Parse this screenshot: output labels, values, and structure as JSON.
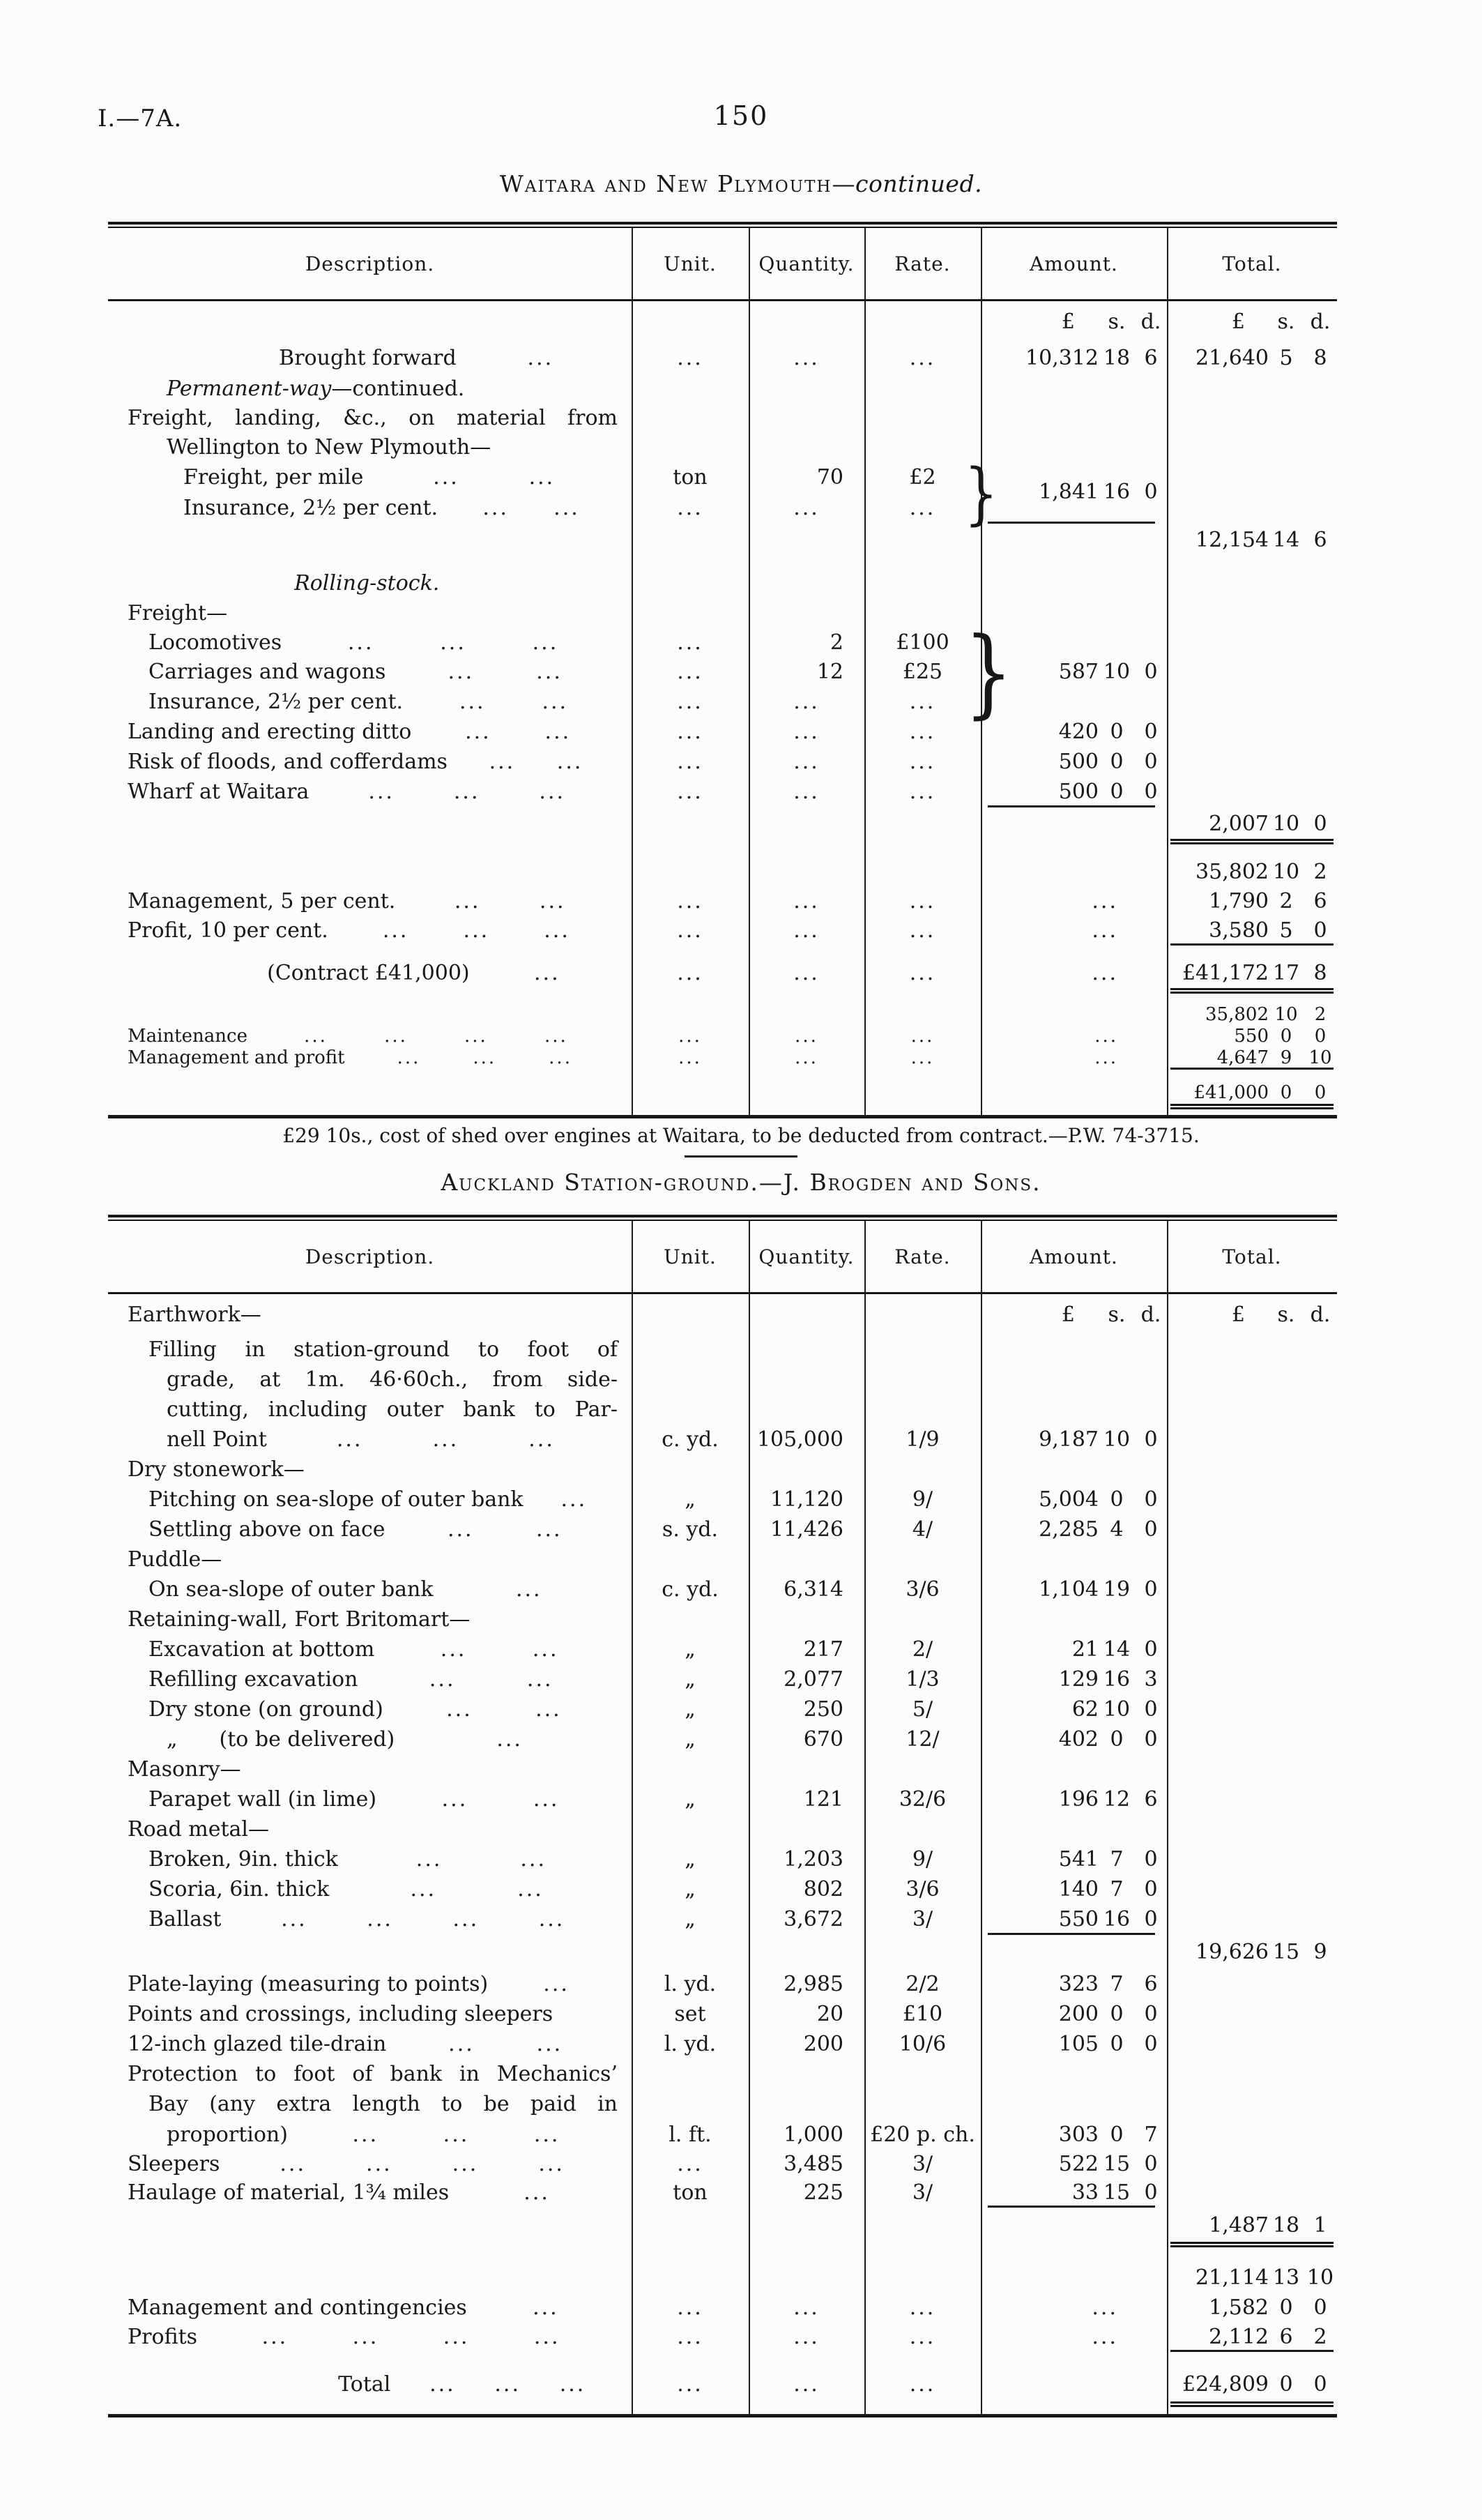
{
  "colors": {
    "ink": "#181715",
    "paper": "#fcfcfa"
  },
  "page": {
    "doc_ref": "I.—7A.",
    "page_number": "150"
  },
  "currency": {
    "pounds": "£",
    "shillings": "s.",
    "pence": "d."
  },
  "footnote": "£29 10s., cost of shed over engines at Waitara, to be deducted from contract.—P.W. 74-3715.",
  "section1": {
    "title": "Waitara and New Plymouth",
    "title_suffix": "—continued.",
    "columns": [
      "Description.",
      "Unit.",
      "Quantity.",
      "Rate.",
      "Amount.",
      "Total."
    ],
    "rows": [
      {
        "cur": true,
        "h": 58
      },
      {
        "desc": "Brought forward",
        "style": "c",
        "dots": 1,
        "unit": "...",
        "qty": "...",
        "rate": "...",
        "amt": [
          "10,312",
          "18",
          "6"
        ],
        "tot": [
          "21,640",
          "5",
          "8"
        ],
        "h": 46
      },
      {
        "italic": "Permanent-way",
        "desc": "—continued.",
        "style": "i2",
        "h": 42
      },
      {
        "desc": "Freight, landing, &c., on material from",
        "style": "j",
        "h": 42
      },
      {
        "desc": "Wellington to New Plymouth—",
        "style": "i2",
        "h": 42
      },
      {
        "desc": "Freight, per mile",
        "style": "i3",
        "dots": 2,
        "unit": "ton",
        "qty": "70",
        "rate": "£2",
        "brace": 2,
        "h": 44
      },
      {
        "desc": "Insurance, 2½ per cent.",
        "style": "i3",
        "dots": 2,
        "unit": "...",
        "qty": "...",
        "rate": "...",
        "amtMid": [
          "1,841",
          "16",
          "0"
        ],
        "h": 44
      },
      {
        "tot": [
          "12,154",
          "14",
          "6"
        ],
        "amtRule": true,
        "h": 48
      },
      {
        "h": 16
      },
      {
        "italic": "Rolling-stock.",
        "style": "c",
        "h": 44
      },
      {
        "desc": "Freight—",
        "style": "f",
        "h": 42
      },
      {
        "desc": "Locomotives",
        "style": "i1",
        "dots": 3,
        "unit": "...",
        "qty": "2",
        "rate": "£100",
        "brace": 3,
        "h": 42
      },
      {
        "desc": "Carriages and wagons",
        "style": "i1",
        "dots": 2,
        "unit": "...",
        "qty": "12",
        "rate": "£25",
        "amt": [
          "587",
          "10",
          "0"
        ],
        "h": 42
      },
      {
        "desc": "Insurance, 2½ per cent.",
        "style": "i1",
        "dots": 2,
        "unit": "...",
        "qty": "...",
        "rate": "...",
        "h": 44
      },
      {
        "desc": "Landing and erecting ditto",
        "style": "f",
        "dots": 2,
        "unit": "...",
        "qty": "...",
        "rate": "...",
        "amt": [
          "420",
          "0",
          "0"
        ],
        "h": 43
      },
      {
        "desc": "Risk of floods, and cofferdams",
        "style": "f",
        "dots": 2,
        "unit": "...",
        "qty": "...",
        "rate": "...",
        "amt": [
          "500",
          "0",
          "0"
        ],
        "h": 43
      },
      {
        "desc": "Wharf at Waitara",
        "style": "f",
        "dots": 3,
        "unit": "...",
        "qty": "...",
        "rate": "...",
        "amt": [
          "500",
          "0",
          "0"
        ],
        "h": 43
      },
      {
        "tot": [
          "2,007",
          "10",
          "0"
        ],
        "amtRule": true,
        "h": 48
      },
      {
        "totRule": "d",
        "h": 24
      },
      {
        "tot": [
          "35,802",
          "10",
          "2"
        ],
        "h": 42
      },
      {
        "desc": "Management, 5 per cent.",
        "style": "f",
        "dots": 2,
        "unit": "...",
        "qty": "...",
        "rate": "...",
        "amt": "...",
        "tot": [
          "1,790",
          "2",
          "6"
        ],
        "h": 42
      },
      {
        "desc": "Profit, 10 per cent.",
        "style": "f",
        "dots": 3,
        "unit": "...",
        "qty": "...",
        "rate": "...",
        "amt": "...",
        "tot": [
          "3,580",
          "5",
          "0"
        ],
        "h": 42
      },
      {
        "totRule": "s",
        "h": 16
      },
      {
        "desc": "(Contract £41,000)",
        "style": "c",
        "dots": 1,
        "unit": "...",
        "qty": "...",
        "rate": "...",
        "amt": "...",
        "tot": [
          "£41,172",
          "17",
          "8"
        ],
        "h": 48
      },
      {
        "totRule": "d",
        "h": 20
      },
      {
        "tot": [
          "35,802",
          "10",
          "2"
        ],
        "small": true,
        "h": 32
      },
      {
        "desc": "Maintenance",
        "style": "f",
        "small": true,
        "dots": 4,
        "unit": "...",
        "qty": "...",
        "rate": "...",
        "amt": "...",
        "tot": [
          "550",
          "0",
          "0"
        ],
        "h": 30
      },
      {
        "desc": "Management and profit",
        "style": "f",
        "small": true,
        "dots": 3,
        "unit": "...",
        "qty": "...",
        "rate": "...",
        "amt": "...",
        "tot": [
          "4,647",
          "9",
          "10"
        ],
        "h": 32
      },
      {
        "totRule": "s",
        "h": 16
      },
      {
        "tot": [
          "£41,000",
          "0",
          "0"
        ],
        "small": true,
        "h": 36
      },
      {
        "totRule": "d",
        "h": 14
      }
    ]
  },
  "section2": {
    "title": "Auckland Station-ground.—J. Brogden and Sons.",
    "columns": [
      "Description.",
      "Unit.",
      "Quantity.",
      "Rate.",
      "Amount.",
      "Total."
    ],
    "rows": [
      {
        "cur": true,
        "desc": "Earthwork—",
        "style": "f",
        "h": 58
      },
      {
        "desc": "Filling in station-ground to foot of",
        "style": "i1 j",
        "h": 43
      },
      {
        "desc": "grade, at 1m. 46·60ch., from side-",
        "style": "i2 j",
        "h": 43
      },
      {
        "desc": "cutting, including outer bank to Par-",
        "style": "i2 j",
        "h": 43
      },
      {
        "desc": "nell Point",
        "style": "i2",
        "dots": 3,
        "unit": "c. yd.",
        "qty": "105,000",
        "rate": "1/9",
        "amt": [
          "9,187",
          "10",
          "0"
        ],
        "h": 43
      },
      {
        "desc": "Dry stonework—",
        "style": "f",
        "h": 43
      },
      {
        "desc": "Pitching on sea-slope of outer bank",
        "style": "i1",
        "dots": 1,
        "unit": "„",
        "qty": "11,120",
        "rate": "9/",
        "amt": [
          "5,004",
          "0",
          "0"
        ],
        "h": 43
      },
      {
        "desc": "Settling above on face",
        "style": "i1",
        "dots": 2,
        "unit": "s. yd.",
        "qty": "11,426",
        "rate": "4/",
        "amt": [
          "2,285",
          "4",
          "0"
        ],
        "h": 43
      },
      {
        "desc": "Puddle—",
        "style": "f",
        "h": 43
      },
      {
        "desc": "On sea-slope of outer bank",
        "style": "i1",
        "dots": 1,
        "unit": "c. yd.",
        "qty": "6,314",
        "rate": "3/6",
        "amt": [
          "1,104",
          "19",
          "0"
        ],
        "h": 43
      },
      {
        "desc": "Retaining-wall, Fort Britomart—",
        "style": "f",
        "h": 43
      },
      {
        "desc": "Excavation at bottom",
        "style": "i1",
        "dots": 2,
        "unit": "„",
        "qty": "217",
        "rate": "2/",
        "amt": [
          "21",
          "14",
          "0"
        ],
        "h": 43
      },
      {
        "desc": "Refilling excavation",
        "style": "i1",
        "dots": 2,
        "unit": "„",
        "qty": "2,077",
        "rate": "1/3",
        "amt": [
          "129",
          "16",
          "3"
        ],
        "h": 43
      },
      {
        "desc": "Dry stone (on ground)",
        "style": "i1",
        "dots": 2,
        "unit": "„",
        "qty": "250",
        "rate": "5/",
        "amt": [
          "62",
          "10",
          "0"
        ],
        "h": 43
      },
      {
        "desc": "„  (to be delivered)",
        "style": "i2",
        "dots": 1,
        "unit": "„",
        "qty": "670",
        "rate": "12/",
        "amt": [
          "402",
          "0",
          "0"
        ],
        "h": 43
      },
      {
        "desc": "Masonry—",
        "style": "f",
        "h": 43
      },
      {
        "desc": "Parapet wall (in lime)",
        "style": "i1",
        "dots": 2,
        "unit": "„",
        "qty": "121",
        "rate": "32/6",
        "amt": [
          "196",
          "12",
          "6"
        ],
        "h": 43
      },
      {
        "desc": "Road metal—",
        "style": "f",
        "h": 43
      },
      {
        "desc": "Broken, 9in. thick",
        "style": "i1",
        "dots": 2,
        "unit": "„",
        "qty": "1,203",
        "rate": "9/",
        "amt": [
          "541",
          "7",
          "0"
        ],
        "h": 43
      },
      {
        "desc": "Scoria, 6in. thick",
        "style": "i1",
        "dots": 2,
        "unit": "„",
        "qty": "802",
        "rate": "3/6",
        "amt": [
          "140",
          "7",
          "0"
        ],
        "h": 43
      },
      {
        "desc": "Ballast",
        "style": "i1",
        "dots": 4,
        "unit": "„",
        "qty": "3,672",
        "rate": "3/",
        "amt": [
          "550",
          "16",
          "0"
        ],
        "h": 43
      },
      {
        "tot": [
          "19,626",
          "15",
          "9"
        ],
        "amtRule": true,
        "h": 50
      },
      {
        "desc": "Plate-laying (measuring to points)",
        "style": "f",
        "dots": 1,
        "unit": "l. yd.",
        "qty": "2,985",
        "rate": "2/2",
        "amt": [
          "323",
          "7",
          "6"
        ],
        "h": 43
      },
      {
        "desc": "Points and crossings, including sleepers",
        "style": "f",
        "unit": "set",
        "qty": "20",
        "rate": "£10",
        "amt": [
          "200",
          "0",
          "0"
        ],
        "h": 43
      },
      {
        "desc": "12-inch glazed tile-drain",
        "style": "f",
        "dots": 2,
        "unit": "l. yd.",
        "qty": "200",
        "rate": "10/6",
        "amt": [
          "105",
          "0",
          "0"
        ],
        "h": 43
      },
      {
        "desc": "Protection to foot of bank in Mechanics’",
        "style": "j",
        "h": 43
      },
      {
        "desc": "Bay (any extra length to be paid in",
        "style": "i1 j",
        "h": 43
      },
      {
        "desc": "proportion)",
        "style": "i2",
        "dots": 3,
        "unit": "l. ft.",
        "qty": "1,000",
        "rate": "£20 p. ch.",
        "amt": [
          "303",
          "0",
          "7"
        ],
        "h": 44
      },
      {
        "desc": "Sleepers",
        "style": "f",
        "dots": 4,
        "unit": "...",
        "qty": "3,485",
        "rate": "3/",
        "amt": [
          "522",
          "15",
          "0"
        ],
        "h": 41
      },
      {
        "desc": "Haulage of material, 1¾ miles",
        "style": "f",
        "dots": 1,
        "unit": "ton",
        "qty": "225",
        "rate": "3/",
        "amt": [
          "33",
          "15",
          "0"
        ],
        "h": 41
      },
      {
        "tot": [
          "1,487",
          "18",
          "1"
        ],
        "amtRule": true,
        "h": 52
      },
      {
        "totRule": "d",
        "h": 28
      },
      {
        "tot": [
          "21,114",
          "13",
          "10"
        ],
        "h": 43
      },
      {
        "desc": "Management and contingencies",
        "style": "f",
        "dots": 1,
        "unit": "...",
        "qty": "...",
        "rate": "...",
        "amt": "...",
        "tot": [
          "1,582",
          "0",
          "0"
        ],
        "h": 43
      },
      {
        "desc": "Profits",
        "style": "f",
        "dots": 4,
        "unit": "...",
        "qty": "...",
        "rate": "...",
        "amt": "...",
        "tot": [
          "2,112",
          "6",
          "2"
        ],
        "h": 41
      },
      {
        "totRule": "s",
        "h": 20
      },
      {
        "desc": "Total",
        "style": "c",
        "dots": 3,
        "unit": "...",
        "qty": "...",
        "rate": "...",
        "tot": [
          "£24,809",
          "0",
          "0"
        ],
        "h": 54
      },
      {
        "totRule": "d",
        "h": 16
      }
    ]
  }
}
